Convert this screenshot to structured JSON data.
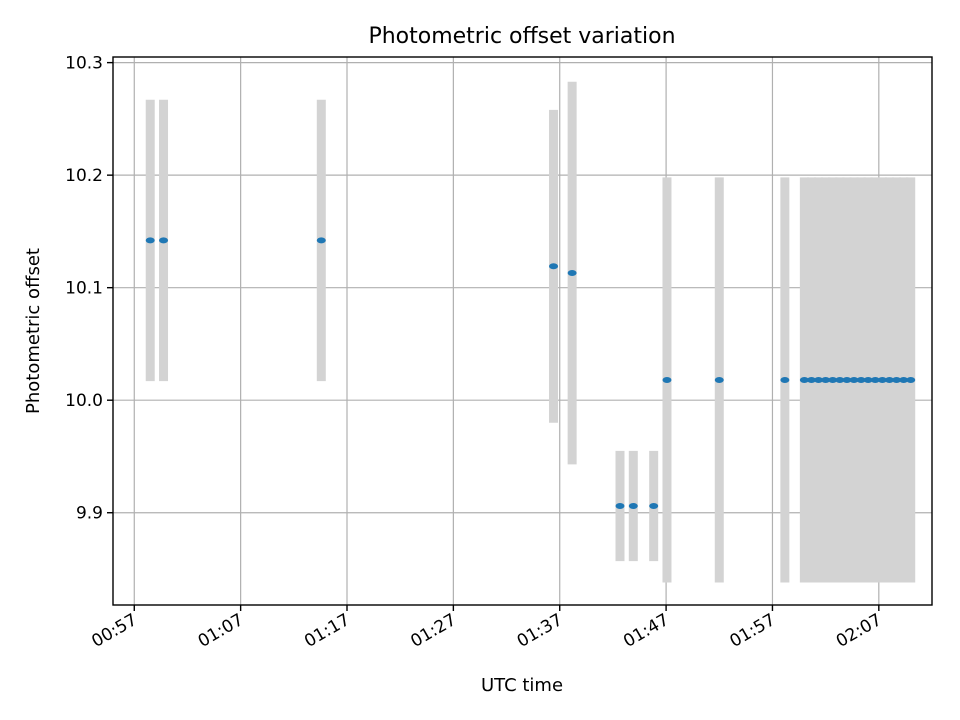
{
  "chart_data": {
    "type": "scatter",
    "title": "Photometric offset variation",
    "xlabel": "UTC time",
    "ylabel": "Photometric offset",
    "xlim": [
      "00:55",
      "02:12"
    ],
    "ylim": [
      9.818,
      10.305
    ],
    "x_ticks": [
      "00:57",
      "01:07",
      "01:17",
      "01:27",
      "01:37",
      "01:47",
      "01:57",
      "02:07"
    ],
    "y_ticks": [
      9.9,
      10.0,
      10.1,
      10.2,
      10.3
    ],
    "y_tick_labels": [
      "9.9",
      "10.0",
      "10.1",
      "10.2",
      "10.3"
    ],
    "grid": true,
    "point_color": "#1f77b4",
    "errorbar_color": "#d3d3d3",
    "series": [
      {
        "points": [
          {
            "t": "00:58:30",
            "y": 10.142,
            "err": 0.125
          },
          {
            "t": "00:59:45",
            "y": 10.142,
            "err": 0.125
          },
          {
            "t": "01:14:35",
            "y": 10.142,
            "err": 0.125
          },
          {
            "t": "01:36:25",
            "y": 10.119,
            "err": 0.139
          },
          {
            "t": "01:38:10",
            "y": 10.113,
            "err": 0.17
          },
          {
            "t": "01:42:40",
            "y": 9.906,
            "err": 0.049
          },
          {
            "t": "01:43:55",
            "y": 9.906,
            "err": 0.049
          },
          {
            "t": "01:45:50",
            "y": 9.906,
            "err": 0.049
          },
          {
            "t": "01:47:05",
            "y": 10.018,
            "err": 0.18
          },
          {
            "t": "01:52:00",
            "y": 10.018,
            "err": 0.18
          },
          {
            "t": "01:58:10",
            "y": 10.018,
            "err": 0.18
          },
          {
            "t": "02:00:00",
            "y": 10.018,
            "err": 0.18
          },
          {
            "t": "02:00:40",
            "y": 10.018,
            "err": 0.18
          },
          {
            "t": "02:01:20",
            "y": 10.018,
            "err": 0.18
          },
          {
            "t": "02:02:00",
            "y": 10.018,
            "err": 0.18
          },
          {
            "t": "02:02:40",
            "y": 10.018,
            "err": 0.18
          },
          {
            "t": "02:03:20",
            "y": 10.018,
            "err": 0.18
          },
          {
            "t": "02:04:00",
            "y": 10.018,
            "err": 0.18
          },
          {
            "t": "02:04:40",
            "y": 10.018,
            "err": 0.18
          },
          {
            "t": "02:05:20",
            "y": 10.018,
            "err": 0.18
          },
          {
            "t": "02:06:00",
            "y": 10.018,
            "err": 0.18
          },
          {
            "t": "02:06:40",
            "y": 10.018,
            "err": 0.18
          },
          {
            "t": "02:07:20",
            "y": 10.018,
            "err": 0.18
          },
          {
            "t": "02:08:00",
            "y": 10.018,
            "err": 0.18
          },
          {
            "t": "02:08:40",
            "y": 10.018,
            "err": 0.18
          },
          {
            "t": "02:09:20",
            "y": 10.018,
            "err": 0.18
          },
          {
            "t": "02:10:00",
            "y": 10.018,
            "err": 0.18
          }
        ]
      }
    ]
  }
}
